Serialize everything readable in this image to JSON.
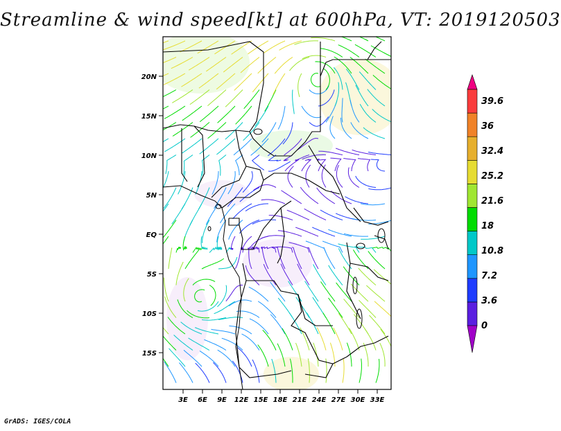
{
  "title": "Streamline & wind speed[kt] at 600hPa, VT: 2019120503",
  "footer": "GrADS: IGES/COLA",
  "map": {
    "lat_labels": [
      "20N",
      "15N",
      "10N",
      "5N",
      "EQ",
      "5S",
      "10S",
      "15S"
    ],
    "lon_labels": [
      "3E",
      "6E",
      "9E",
      "12E",
      "15E",
      "18E",
      "21E",
      "24E",
      "27E",
      "30E",
      "33E"
    ]
  },
  "colorbar": {
    "labels": [
      "0",
      "3.6",
      "7.2",
      "10.8",
      "18",
      "21.6",
      "25.2",
      "32.4",
      "36",
      "39.6"
    ],
    "colors": [
      "#a000c8",
      "#5a1ee0",
      "#1e3cff",
      "#1e96ff",
      "#00c8c8",
      "#00dc00",
      "#a0e632",
      "#e6dc32",
      "#e6af2d",
      "#f08228",
      "#fa3c3c",
      "#f00082"
    ]
  }
}
